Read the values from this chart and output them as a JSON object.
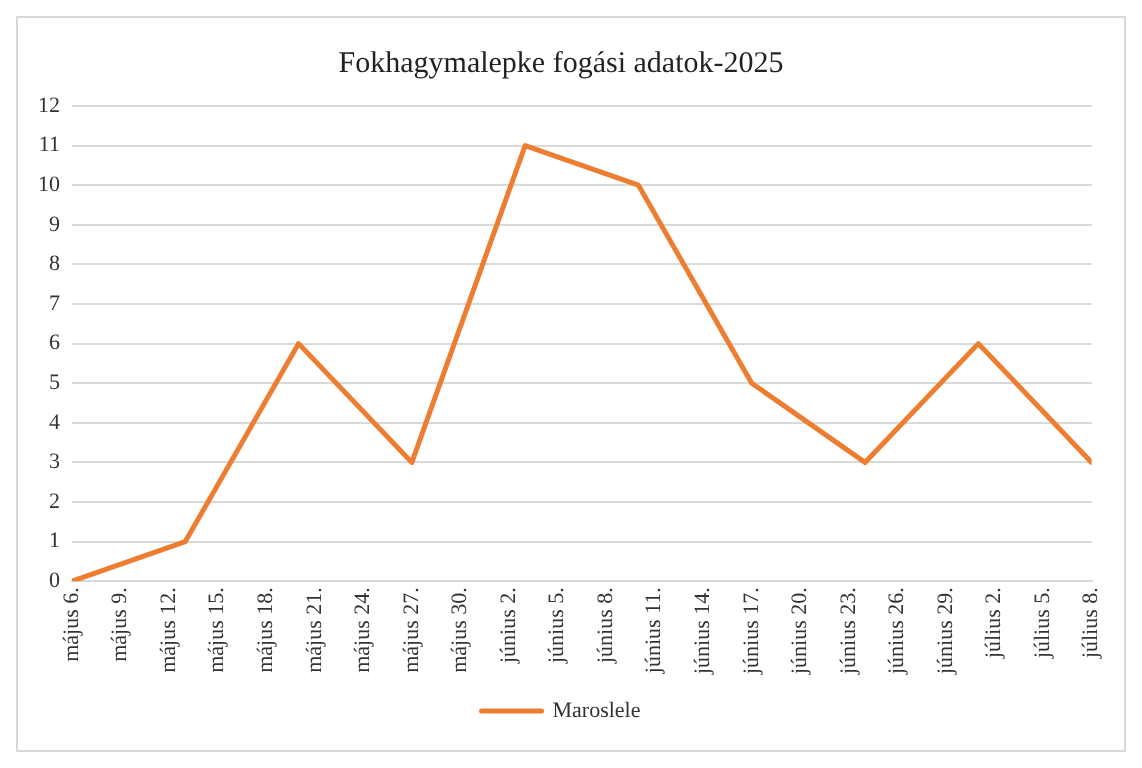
{
  "chart_data": {
    "type": "line",
    "title": "Fokhagymalepke fogási adatok-2025",
    "x": [
      "2025-05-06",
      "2025-05-13",
      "2025-05-20",
      "2025-05-27",
      "2025-06-03",
      "2025-06-10",
      "2025-06-17",
      "2025-06-24",
      "2025-07-01",
      "2025-07-08"
    ],
    "series": [
      {
        "name": "Maroslele",
        "color": "#ed7d31",
        "values": [
          0,
          1,
          6,
          3,
          11,
          10,
          5,
          3,
          6,
          3
        ]
      }
    ],
    "xlim": [
      "2025-05-06",
      "2025-07-08"
    ],
    "xticks": [
      {
        "value": "2025-05-06",
        "label": "május 6."
      },
      {
        "value": "2025-05-09",
        "label": "május 9."
      },
      {
        "value": "2025-05-12",
        "label": "május 12."
      },
      {
        "value": "2025-05-15",
        "label": "május 15."
      },
      {
        "value": "2025-05-18",
        "label": "május 18."
      },
      {
        "value": "2025-05-21",
        "label": "május 21."
      },
      {
        "value": "2025-05-24",
        "label": "május 24."
      },
      {
        "value": "2025-05-27",
        "label": "május 27."
      },
      {
        "value": "2025-05-30",
        "label": "május 30."
      },
      {
        "value": "2025-06-02",
        "label": "június 2."
      },
      {
        "value": "2025-06-05",
        "label": "június 5."
      },
      {
        "value": "2025-06-08",
        "label": "június 8."
      },
      {
        "value": "2025-06-11",
        "label": "június 11."
      },
      {
        "value": "2025-06-14",
        "label": "június 14."
      },
      {
        "value": "2025-06-17",
        "label": "június 17."
      },
      {
        "value": "2025-06-20",
        "label": "június 20."
      },
      {
        "value": "2025-06-23",
        "label": "június 23."
      },
      {
        "value": "2025-06-26",
        "label": "június 26."
      },
      {
        "value": "2025-06-29",
        "label": "június 29."
      },
      {
        "value": "2025-07-02",
        "label": "július 2."
      },
      {
        "value": "2025-07-05",
        "label": "július 5."
      },
      {
        "value": "2025-07-08",
        "label": "július 8."
      }
    ],
    "ylim": [
      0,
      12
    ],
    "yticks": [
      0,
      1,
      2,
      3,
      4,
      5,
      6,
      7,
      8,
      9,
      10,
      11,
      12
    ],
    "grid": "y",
    "legend": "bottom",
    "marker": "none",
    "line_style": "solid"
  }
}
